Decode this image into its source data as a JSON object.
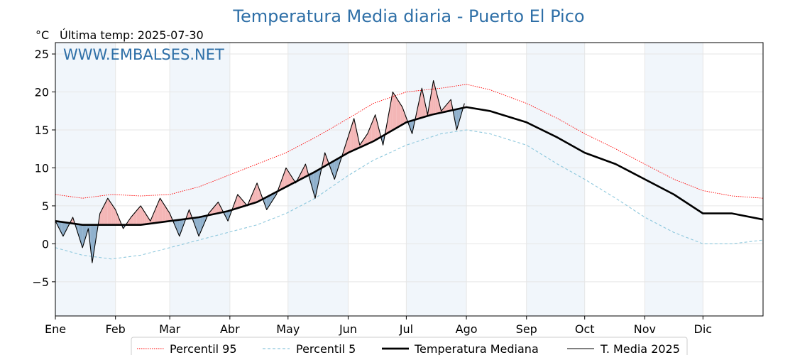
{
  "chart_data": {
    "type": "line",
    "title": "Temperatura Media diaria - Puerto El Pico",
    "unit": "°C",
    "subtitle": "Última temp: 2025-07-30",
    "watermark": "WWW.EMBALSES.NET",
    "xlim": [
      1,
      366
    ],
    "ylim": [
      -9.5,
      26.5
    ],
    "yticks": [
      -5,
      0,
      5,
      10,
      15,
      20,
      25
    ],
    "ytick_labels": [
      "−5",
      "0",
      "5",
      "10",
      "15",
      "20",
      "25"
    ],
    "months": [
      {
        "label": "Ene",
        "day": 1
      },
      {
        "label": "Feb",
        "day": 32
      },
      {
        "label": "Mar",
        "day": 60
      },
      {
        "label": "Abr",
        "day": 91
      },
      {
        "label": "May",
        "day": 121
      },
      {
        "label": "Jun",
        "day": 152
      },
      {
        "label": "Jul",
        "day": 182
      },
      {
        "label": "Ago",
        "day": 213
      },
      {
        "label": "Sep",
        "day": 244
      },
      {
        "label": "Oct",
        "day": 274
      },
      {
        "label": "Nov",
        "day": 305
      },
      {
        "label": "Dic",
        "day": 335
      }
    ],
    "shaded_months": [
      [
        1,
        32
      ],
      [
        60,
        91
      ],
      [
        121,
        152
      ],
      [
        182,
        213
      ],
      [
        244,
        274
      ],
      [
        305,
        335
      ]
    ],
    "grid": true,
    "legend_position": "bottom-center",
    "series": [
      {
        "name": "Percentil 95",
        "color": "#ff0000",
        "style": "dotted",
        "points": [
          [
            1,
            6.5
          ],
          [
            15,
            6
          ],
          [
            30,
            6.5
          ],
          [
            45,
            6.3
          ],
          [
            60,
            6.5
          ],
          [
            75,
            7.5
          ],
          [
            90,
            9
          ],
          [
            105,
            10.5
          ],
          [
            120,
            12
          ],
          [
            135,
            14
          ],
          [
            152,
            16.5
          ],
          [
            165,
            18.5
          ],
          [
            182,
            20
          ],
          [
            200,
            20.5
          ],
          [
            213,
            21
          ],
          [
            225,
            20.3
          ],
          [
            244,
            18.5
          ],
          [
            260,
            16.5
          ],
          [
            274,
            14.5
          ],
          [
            290,
            12.5
          ],
          [
            305,
            10.5
          ],
          [
            320,
            8.5
          ],
          [
            335,
            7
          ],
          [
            350,
            6.3
          ],
          [
            366,
            6
          ]
        ]
      },
      {
        "name": "Percentil 5",
        "color": "#8ec8dd",
        "style": "dashed",
        "points": [
          [
            1,
            -0.5
          ],
          [
            15,
            -1.5
          ],
          [
            30,
            -2
          ],
          [
            45,
            -1.5
          ],
          [
            60,
            -0.5
          ],
          [
            75,
            0.5
          ],
          [
            90,
            1.5
          ],
          [
            105,
            2.5
          ],
          [
            120,
            4
          ],
          [
            135,
            6
          ],
          [
            152,
            9
          ],
          [
            165,
            11
          ],
          [
            182,
            13
          ],
          [
            200,
            14.5
          ],
          [
            213,
            15
          ],
          [
            225,
            14.5
          ],
          [
            244,
            13
          ],
          [
            260,
            10.5
          ],
          [
            274,
            8.5
          ],
          [
            290,
            6
          ],
          [
            305,
            3.5
          ],
          [
            320,
            1.5
          ],
          [
            335,
            0
          ],
          [
            350,
            0
          ],
          [
            366,
            0.5
          ]
        ]
      },
      {
        "name": "Temperatura Mediana",
        "color": "#000000",
        "style": "solid-thick",
        "points": [
          [
            1,
            3
          ],
          [
            15,
            2.5
          ],
          [
            30,
            2.5
          ],
          [
            45,
            2.5
          ],
          [
            60,
            3
          ],
          [
            75,
            3.5
          ],
          [
            90,
            4.3
          ],
          [
            105,
            5.5
          ],
          [
            120,
            7.5
          ],
          [
            135,
            9.5
          ],
          [
            152,
            12
          ],
          [
            165,
            13.5
          ],
          [
            182,
            16
          ],
          [
            195,
            17
          ],
          [
            213,
            18
          ],
          [
            225,
            17.5
          ],
          [
            244,
            16
          ],
          [
            260,
            14
          ],
          [
            274,
            12
          ],
          [
            290,
            10.5
          ],
          [
            305,
            8.5
          ],
          [
            320,
            6.5
          ],
          [
            335,
            4
          ],
          [
            350,
            4
          ],
          [
            366,
            3.2
          ]
        ]
      },
      {
        "name": "T. Media 2025",
        "color": "#000000",
        "style": "solid-thin",
        "points": [
          [
            1,
            3
          ],
          [
            5,
            1
          ],
          [
            10,
            3.5
          ],
          [
            15,
            -0.5
          ],
          [
            18,
            2
          ],
          [
            20,
            -2.5
          ],
          [
            24,
            4
          ],
          [
            28,
            6
          ],
          [
            32,
            4.5
          ],
          [
            36,
            2
          ],
          [
            40,
            3.5
          ],
          [
            45,
            5
          ],
          [
            50,
            3
          ],
          [
            55,
            6
          ],
          [
            60,
            4
          ],
          [
            65,
            1
          ],
          [
            70,
            4.5
          ],
          [
            75,
            1
          ],
          [
            80,
            4
          ],
          [
            85,
            5.5
          ],
          [
            90,
            3
          ],
          [
            95,
            6.5
          ],
          [
            100,
            5
          ],
          [
            105,
            8
          ],
          [
            110,
            4.5
          ],
          [
            115,
            6.5
          ],
          [
            120,
            10
          ],
          [
            125,
            8
          ],
          [
            130,
            10.5
          ],
          [
            135,
            6
          ],
          [
            140,
            12
          ],
          [
            145,
            8.5
          ],
          [
            150,
            12.5
          ],
          [
            155,
            16.5
          ],
          [
            158,
            13
          ],
          [
            162,
            14.5
          ],
          [
            166,
            17
          ],
          [
            170,
            13
          ],
          [
            175,
            20
          ],
          [
            180,
            18
          ],
          [
            185,
            14.5
          ],
          [
            190,
            20.5
          ],
          [
            193,
            17
          ],
          [
            196,
            21.5
          ],
          [
            200,
            17.5
          ],
          [
            205,
            19
          ],
          [
            208,
            15
          ],
          [
            212,
            18.5
          ]
        ]
      }
    ]
  },
  "legend": {
    "items": [
      {
        "label": "Percentil 95"
      },
      {
        "label": "Percentil 5"
      },
      {
        "label": "Temperatura Mediana"
      },
      {
        "label": "T. Media 2025"
      }
    ]
  }
}
